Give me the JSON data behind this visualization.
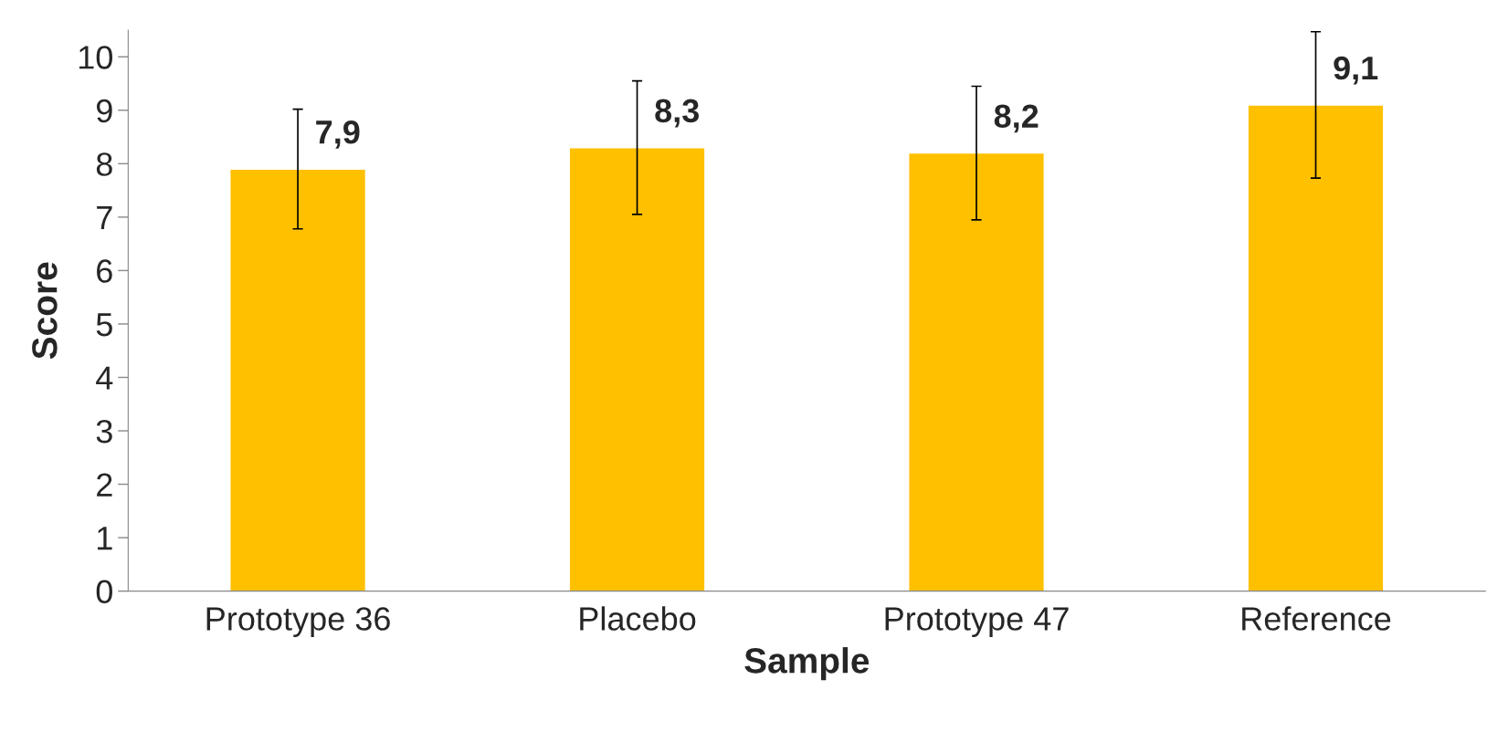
{
  "chart_data": {
    "type": "bar",
    "xlabel": "Sample",
    "ylabel": "Score",
    "categories": [
      "Prototype 36",
      "Placebo",
      "Prototype 47",
      "Reference"
    ],
    "values": [
      7.9,
      8.3,
      8.2,
      9.1
    ],
    "value_labels": [
      "7,9",
      "8,3",
      "8,2",
      "9,1"
    ],
    "errors": [
      1.12,
      1.25,
      1.25,
      1.37
    ],
    "color": "#ffc000",
    "ylim": [
      0,
      10.5
    ],
    "yticks": [
      0,
      1,
      2,
      3,
      4,
      5,
      6,
      7,
      8,
      9,
      10
    ],
    "grid": false,
    "legend": false
  }
}
